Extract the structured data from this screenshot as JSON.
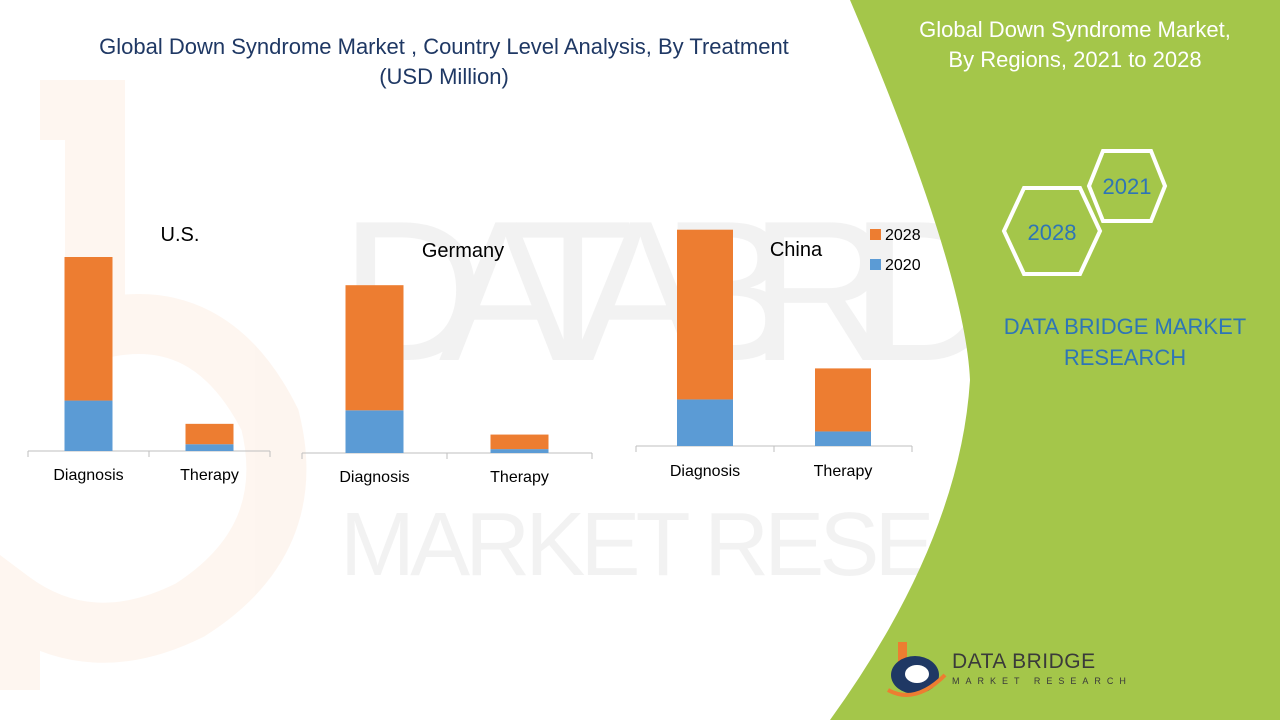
{
  "header": {
    "title_line1": "Global Down Syndrome Market , Country Level Analysis, By Treatment",
    "title_line2": "(USD Million)"
  },
  "sidebar": {
    "title_line1": "Global Down Syndrome Market,",
    "title_line2": "By Regions, 2021 to 2028",
    "hex_labels": [
      "2021",
      "2028"
    ],
    "company_line1": "DATA BRIDGE MARKET",
    "company_line2": "RESEARCH",
    "logo_text": "DATA BRIDGE",
    "logo_subtext": "MARKET RESEARCH"
  },
  "colors": {
    "series_2028": "#ed7d31",
    "series_2020": "#5b9bd5",
    "sidebar_green": "#a4c64a",
    "title_blue": "#1f3864",
    "company_blue": "#2e75b6"
  },
  "chart_data": {
    "type": "bar",
    "stacked": true,
    "categories": [
      "Diagnosis",
      "Therapy"
    ],
    "legend": [
      "2028",
      "2020"
    ],
    "legend_position": "right",
    "panels": [
      {
        "name": "U.S.",
        "series": [
          {
            "name": "2020",
            "values": [
              52,
              7
            ]
          },
          {
            "name": "2028",
            "values": [
              148,
              21
            ]
          }
        ]
      },
      {
        "name": "Germany",
        "series": [
          {
            "name": "2020",
            "values": [
              44,
              4
            ]
          },
          {
            "name": "2028",
            "values": [
              129,
              15
            ]
          }
        ]
      },
      {
        "name": "China",
        "series": [
          {
            "name": "2020",
            "values": [
              48,
              15
            ]
          },
          {
            "name": "2028",
            "values": [
              175,
              65
            ]
          }
        ]
      }
    ]
  }
}
